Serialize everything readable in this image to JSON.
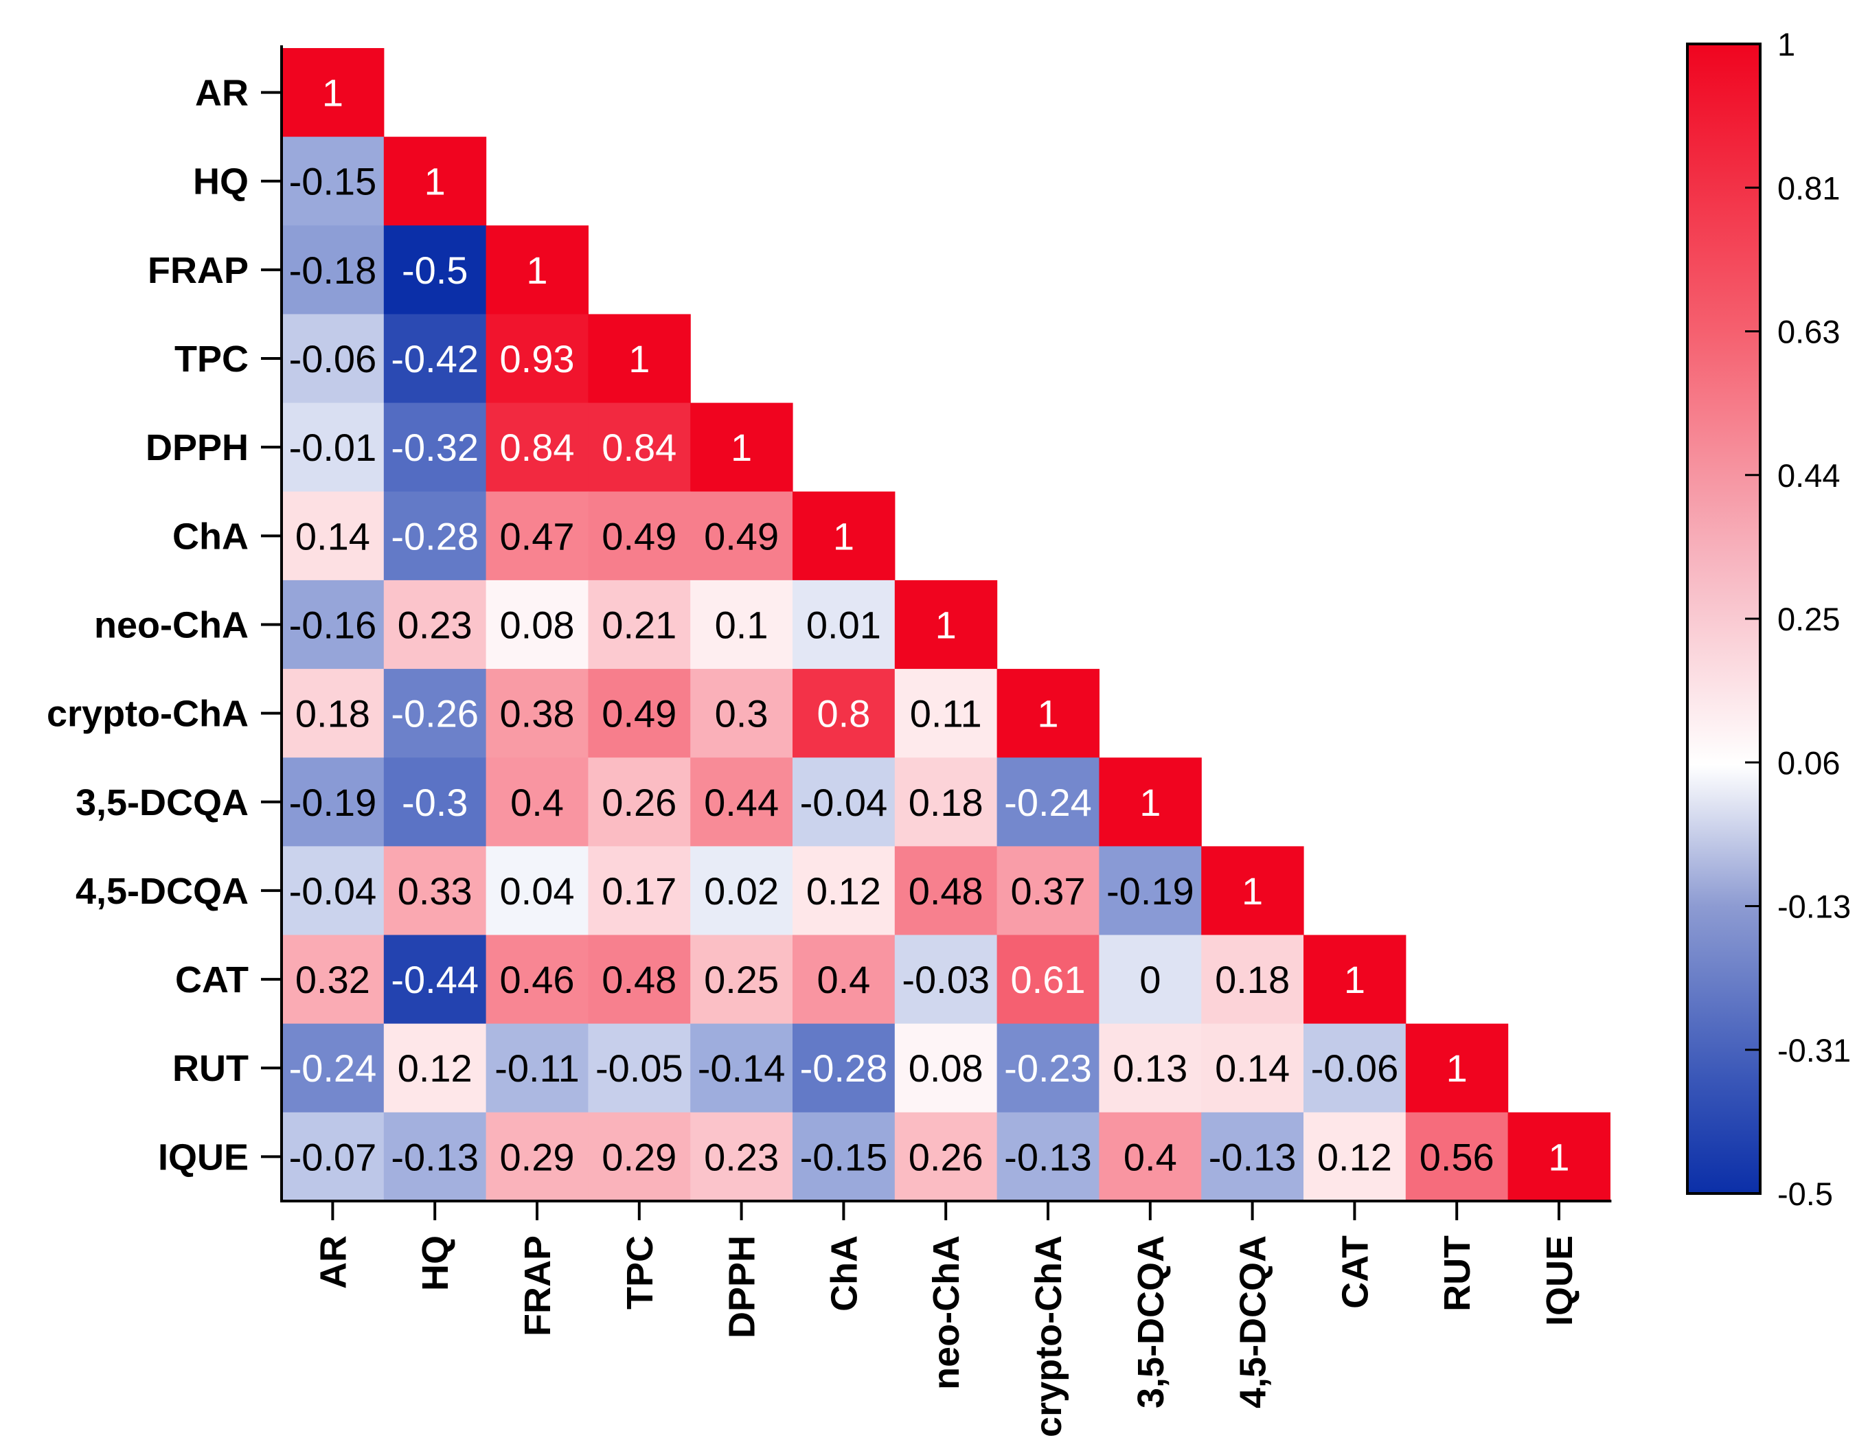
{
  "chart_data": {
    "type": "heatmap",
    "variables": [
      "AR",
      "HQ",
      "FRAP",
      "TPC",
      "DPPH",
      "ChA",
      "neo-ChA",
      "crypto-ChA",
      "3,5-DCQA",
      "4,5-DCQA",
      "CAT",
      "RUT",
      "IQUE"
    ],
    "matrix_lower": [
      [
        1
      ],
      [
        -0.15,
        1
      ],
      [
        -0.18,
        -0.5,
        1
      ],
      [
        -0.06,
        -0.42,
        0.93,
        1
      ],
      [
        -0.01,
        -0.32,
        0.84,
        0.84,
        1
      ],
      [
        0.14,
        -0.28,
        0.47,
        0.49,
        0.49,
        1
      ],
      [
        -0.16,
        0.23,
        0.08,
        0.21,
        0.1,
        0.01,
        1
      ],
      [
        0.18,
        -0.26,
        0.38,
        0.49,
        0.3,
        0.8,
        0.11,
        1
      ],
      [
        -0.19,
        -0.3,
        0.4,
        0.26,
        0.44,
        -0.04,
        0.18,
        -0.24,
        1
      ],
      [
        -0.04,
        0.33,
        0.04,
        0.17,
        0.02,
        0.12,
        0.48,
        0.37,
        -0.19,
        1
      ],
      [
        0.32,
        -0.44,
        0.46,
        0.48,
        0.25,
        0.4,
        -0.03,
        0.61,
        0,
        0.18,
        1
      ],
      [
        -0.24,
        0.12,
        -0.11,
        -0.05,
        -0.14,
        -0.28,
        0.08,
        -0.23,
        0.13,
        0.14,
        -0.06,
        1
      ],
      [
        -0.07,
        -0.13,
        0.29,
        0.29,
        0.23,
        -0.15,
        0.26,
        -0.13,
        0.4,
        -0.13,
        0.12,
        0.56,
        1
      ]
    ],
    "color_scale": {
      "min": -0.5,
      "mid": 0.06,
      "max": 1,
      "low_color": "#0b2fa8",
      "mid_color": "#ffffff",
      "high_color": "#f0041f",
      "ticks": [
        "1",
        "0.81",
        "0.63",
        "0.44",
        "0.25",
        "0.06",
        "-0.13",
        "-0.31",
        "-0.5"
      ]
    },
    "title": "",
    "xlabel": "",
    "ylabel": ""
  }
}
